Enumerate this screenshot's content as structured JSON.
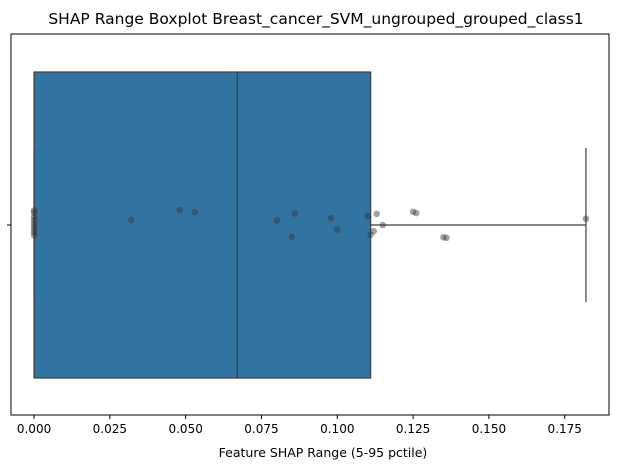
{
  "chart_data": {
    "type": "boxplot",
    "title": "SHAP Range Boxplot Breast_cancer_SVM_ungrouped_grouped_class1",
    "xlabel": "Feature SHAP Range (5-95 pctile)",
    "ylabel": "",
    "xlim": [
      -0.0076,
      0.1896
    ],
    "x_ticks": [
      0.0,
      0.025,
      0.05,
      0.075,
      0.1,
      0.125,
      0.15,
      0.175
    ],
    "x_tick_labels": [
      "0.000",
      "0.025",
      "0.050",
      "0.075",
      "0.100",
      "0.125",
      "0.150",
      "0.175"
    ],
    "grid": false,
    "legend": "none",
    "box": {
      "whisker_low": 0.0,
      "q1": 0.0,
      "median": 0.067,
      "q3": 0.111,
      "whisker_high": 0.182
    },
    "points": [
      {
        "x": 0.0,
        "jitter": 0.35
      },
      {
        "x": 0.0,
        "jitter": 0.3
      },
      {
        "x": 0.0,
        "jitter": 0.2
      },
      {
        "x": 0.0,
        "jitter": 0.12
      },
      {
        "x": 0.0,
        "jitter": 0.05
      },
      {
        "x": 0.0,
        "jitter": -0.03
      },
      {
        "x": 0.0,
        "jitter": -0.1
      },
      {
        "x": 0.0,
        "jitter": -0.18
      },
      {
        "x": 0.0,
        "jitter": -0.25
      },
      {
        "x": 0.032,
        "jitter": 0.12
      },
      {
        "x": 0.048,
        "jitter": 0.36
      },
      {
        "x": 0.053,
        "jitter": 0.31
      },
      {
        "x": 0.08,
        "jitter": 0.11
      },
      {
        "x": 0.085,
        "jitter": -0.29
      },
      {
        "x": 0.086,
        "jitter": 0.28
      },
      {
        "x": 0.098,
        "jitter": 0.17
      },
      {
        "x": 0.1,
        "jitter": -0.11
      },
      {
        "x": 0.11,
        "jitter": 0.22
      },
      {
        "x": 0.111,
        "jitter": -0.24
      },
      {
        "x": 0.112,
        "jitter": -0.15
      },
      {
        "x": 0.113,
        "jitter": 0.27
      },
      {
        "x": 0.115,
        "jitter": 0.0
      },
      {
        "x": 0.125,
        "jitter": 0.32
      },
      {
        "x": 0.126,
        "jitter": 0.29
      },
      {
        "x": 0.135,
        "jitter": -0.3
      },
      {
        "x": 0.136,
        "jitter": -0.31
      },
      {
        "x": 0.182,
        "jitter": 0.15
      }
    ],
    "colors": {
      "box_fill": "#3274a1",
      "line": "#3d3d3d",
      "point": "#333333"
    }
  }
}
